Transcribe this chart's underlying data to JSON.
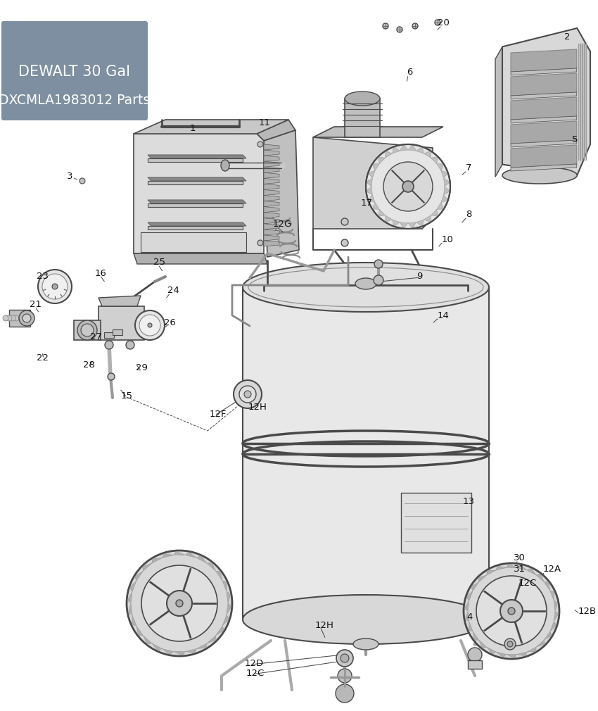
{
  "title_line1": "DEWALT 30 Gal",
  "title_line2": "DXCMLA1983012 Parts",
  "title_bg_color": "#7d8fa0",
  "title_text_color": "#ffffff",
  "bg_color": "#ffffff",
  "line_color": "#4a4a4a",
  "label_color": "#111111",
  "label_fontsize": 9.5,
  "labels": [
    [
      "1",
      270,
      182,
      "left"
    ],
    [
      "2",
      802,
      52,
      "left"
    ],
    [
      "3",
      95,
      250,
      "left"
    ],
    [
      "4",
      663,
      877,
      "left"
    ],
    [
      "5",
      813,
      198,
      "left"
    ],
    [
      "6",
      578,
      103,
      "left"
    ],
    [
      "7",
      662,
      238,
      "left"
    ],
    [
      "8",
      662,
      305,
      "left"
    ],
    [
      "9",
      592,
      392,
      "left"
    ],
    [
      "10",
      628,
      340,
      "left"
    ],
    [
      "11",
      368,
      175,
      "left"
    ],
    [
      "12A",
      772,
      808,
      "left"
    ],
    [
      "12B",
      822,
      868,
      "left"
    ],
    [
      "12C",
      737,
      828,
      "left"
    ],
    [
      "12C",
      350,
      957,
      "left"
    ],
    [
      "12D",
      348,
      942,
      "left"
    ],
    [
      "12F",
      298,
      588,
      "left"
    ],
    [
      "12G",
      388,
      318,
      "left"
    ],
    [
      "12H",
      353,
      578,
      "left"
    ],
    [
      "12H",
      448,
      888,
      "left"
    ],
    [
      "13",
      658,
      713,
      "left"
    ],
    [
      "14",
      622,
      448,
      "left"
    ],
    [
      "15",
      172,
      562,
      "left"
    ],
    [
      "16",
      135,
      388,
      "left"
    ],
    [
      "17",
      513,
      288,
      "left"
    ],
    [
      "20",
      622,
      33,
      "left"
    ],
    [
      "21",
      42,
      433,
      "left"
    ],
    [
      "22",
      52,
      508,
      "left"
    ],
    [
      "23",
      52,
      393,
      "left"
    ],
    [
      "24",
      238,
      413,
      "left"
    ],
    [
      "25",
      218,
      373,
      "left"
    ],
    [
      "26",
      233,
      458,
      "left"
    ],
    [
      "27",
      128,
      478,
      "left"
    ],
    [
      "28",
      118,
      518,
      "left"
    ],
    [
      "29",
      193,
      523,
      "left"
    ],
    [
      "30",
      730,
      793,
      "left"
    ],
    [
      "31",
      730,
      808,
      "left"
    ]
  ]
}
